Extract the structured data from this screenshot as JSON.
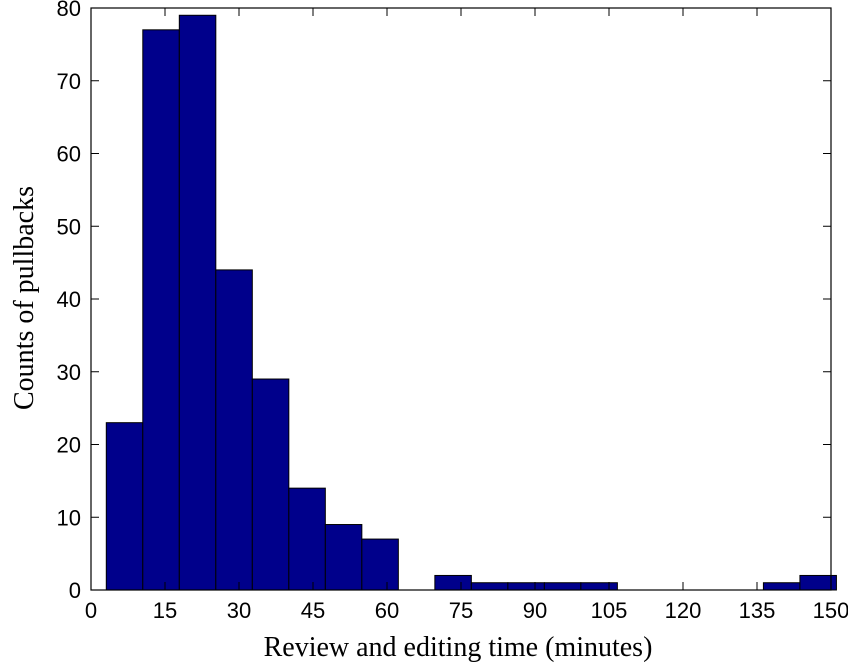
{
  "chart_data": {
    "type": "bar",
    "subtype": "histogram",
    "xlabel": "Review and editing time (minutes)",
    "ylabel": "Counts of pullbacks",
    "xlim": [
      0,
      150
    ],
    "ylim": [
      0,
      80
    ],
    "xticks": [
      0,
      15,
      30,
      45,
      60,
      75,
      90,
      105,
      120,
      135,
      150
    ],
    "xtick_labels": [
      "0",
      "15",
      "30",
      "45",
      "60",
      "75",
      "90",
      "105",
      "120",
      "135",
      "150"
    ],
    "yticks": [
      0,
      10,
      20,
      30,
      40,
      50,
      60,
      70,
      80
    ],
    "ytick_labels": [
      "0",
      "10",
      "20",
      "30",
      "40",
      "50",
      "60",
      "70",
      "80"
    ],
    "grid": false,
    "bar_color": "#00008B",
    "bins": [
      {
        "x0": 3.1,
        "x1": 10.5,
        "value": 23
      },
      {
        "x0": 10.5,
        "x1": 17.9,
        "value": 77
      },
      {
        "x0": 17.9,
        "x1": 25.3,
        "value": 79
      },
      {
        "x0": 25.3,
        "x1": 32.7,
        "value": 44
      },
      {
        "x0": 32.7,
        "x1": 40.1,
        "value": 29
      },
      {
        "x0": 40.1,
        "x1": 47.5,
        "value": 14
      },
      {
        "x0": 47.5,
        "x1": 54.9,
        "value": 9
      },
      {
        "x0": 54.9,
        "x1": 62.3,
        "value": 7
      },
      {
        "x0": 62.3,
        "x1": 69.7,
        "value": 0
      },
      {
        "x0": 69.7,
        "x1": 77.1,
        "value": 2
      },
      {
        "x0": 77.1,
        "x1": 84.5,
        "value": 1
      },
      {
        "x0": 84.5,
        "x1": 91.9,
        "value": 1
      },
      {
        "x0": 91.9,
        "x1": 99.3,
        "value": 1
      },
      {
        "x0": 99.3,
        "x1": 106.7,
        "value": 1
      },
      {
        "x0": 106.7,
        "x1": 114.1,
        "value": 0
      },
      {
        "x0": 114.1,
        "x1": 121.5,
        "value": 0
      },
      {
        "x0": 121.5,
        "x1": 128.9,
        "value": 0
      },
      {
        "x0": 128.9,
        "x1": 136.3,
        "value": 0
      },
      {
        "x0": 136.3,
        "x1": 143.7,
        "value": 1
      },
      {
        "x0": 143.7,
        "x1": 151.1,
        "value": 2
      }
    ]
  }
}
